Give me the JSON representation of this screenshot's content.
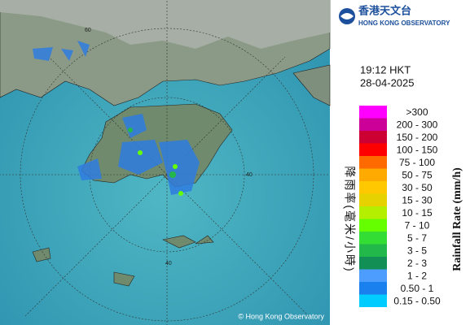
{
  "header": {
    "logo_chinese": "香港天文台",
    "logo_english": "HONG KONG OBSERVATORY"
  },
  "time": "19:12 HKT",
  "date": "28-04-2025",
  "map": {
    "ring_labels": [
      "60",
      "40",
      "40"
    ],
    "copyright": "© Hong Kong Observatory"
  },
  "legend": {
    "title_chinese": "降雨率(毫米/小時)",
    "title_english": "Rainfall Rate (mm/h)",
    "items": [
      {
        "label": ">300",
        "color": "#ff00ff"
      },
      {
        "label": "200 - 300",
        "color": "#cc0099"
      },
      {
        "label": "150 - 200",
        "color": "#cc0033"
      },
      {
        "label": "100 - 150",
        "color": "#ff0000"
      },
      {
        "label": "75 - 100",
        "color": "#ff6a00"
      },
      {
        "label": "50 - 75",
        "color": "#ffaa00"
      },
      {
        "label": "30 - 50",
        "color": "#ffc800"
      },
      {
        "label": "15 - 30",
        "color": "#e6d200"
      },
      {
        "label": "10 - 15",
        "color": "#b4ee00"
      },
      {
        "label": "7 - 10",
        "color": "#66ff00"
      },
      {
        "label": "5 - 7",
        "color": "#33dd33"
      },
      {
        "label": "3 - 5",
        "color": "#22b84a"
      },
      {
        "label": "2 - 3",
        "color": "#118f55"
      },
      {
        "label": "1 - 2",
        "color": "#4d9dff"
      },
      {
        "label": "0.50 - 1",
        "color": "#1a80ee"
      },
      {
        "label": "0.15 - 0.50",
        "color": "#00ccff"
      }
    ]
  }
}
